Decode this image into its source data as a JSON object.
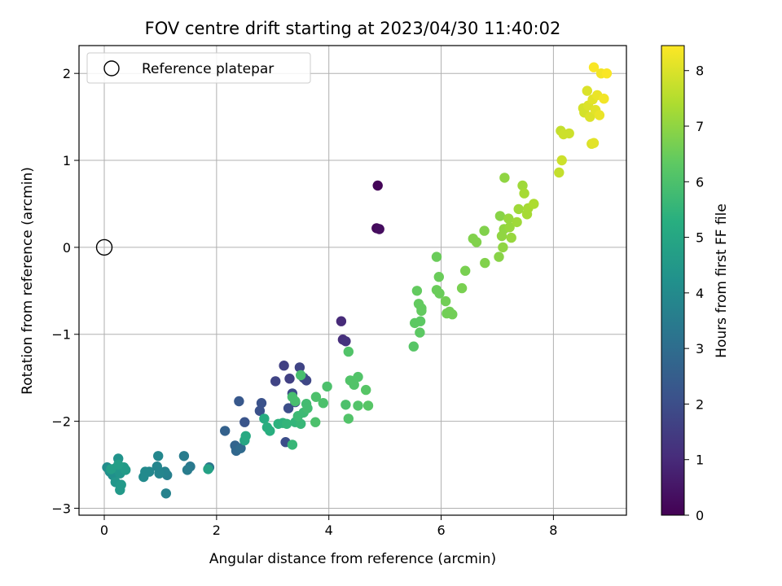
{
  "chart_data": {
    "type": "scatter",
    "title": "FOV centre drift starting at 2023/04/30 11:40:02",
    "xlabel": "Angular distance from reference (arcmin)",
    "ylabel": "Rotation from reference (arcmin)",
    "xlim": [
      -0.45,
      9.3
    ],
    "ylim": [
      -3.08,
      2.32
    ],
    "xticks": [
      0,
      2,
      4,
      6,
      8
    ],
    "yticks": [
      -3,
      -2,
      -1,
      0,
      1,
      2
    ],
    "xtick_labels": [
      "0",
      "2",
      "4",
      "6",
      "8"
    ],
    "ytick_labels": [
      "−3",
      "−2",
      "−1",
      "0",
      "1",
      "2"
    ],
    "grid": true,
    "legend": {
      "placement": "top-left",
      "entries": [
        "Reference platepar"
      ]
    },
    "reference_point": {
      "x": 0,
      "y": 0
    },
    "colorbar": {
      "label": "Hours from first FF file",
      "range": [
        0,
        8.45
      ],
      "ticks": [
        0,
        1,
        2,
        3,
        4,
        5,
        6,
        7,
        8
      ],
      "tick_labels": [
        "0",
        "1",
        "2",
        "3",
        "4",
        "5",
        "6",
        "7",
        "8"
      ],
      "colormap": "viridis"
    },
    "points": [
      [
        4.87,
        0.71,
        0.1
      ],
      [
        4.85,
        0.22,
        0.2
      ],
      [
        4.9,
        0.21,
        0.3
      ],
      [
        4.22,
        -0.85,
        1.0
      ],
      [
        4.25,
        -1.06,
        1.1
      ],
      [
        4.3,
        -1.08,
        1.2
      ],
      [
        3.2,
        -1.36,
        1.6
      ],
      [
        3.3,
        -1.51,
        1.6
      ],
      [
        3.48,
        -1.38,
        1.7
      ],
      [
        3.05,
        -1.54,
        1.7
      ],
      [
        3.55,
        -1.5,
        1.8
      ],
      [
        3.6,
        -1.53,
        1.8
      ],
      [
        3.35,
        -1.68,
        1.9
      ],
      [
        3.4,
        -1.78,
        1.9
      ],
      [
        3.28,
        -1.85,
        2.0
      ],
      [
        3.23,
        -2.24,
        2.0
      ],
      [
        2.8,
        -1.79,
        2.1
      ],
      [
        2.77,
        -1.88,
        2.1
      ],
      [
        2.5,
        -2.01,
        2.2
      ],
      [
        2.4,
        -1.77,
        2.3
      ],
      [
        2.15,
        -2.11,
        2.6
      ],
      [
        2.33,
        -2.28,
        2.7
      ],
      [
        2.35,
        -2.34,
        2.8
      ],
      [
        2.43,
        -2.31,
        2.9
      ],
      [
        1.87,
        -2.53,
        3.3
      ],
      [
        1.53,
        -2.52,
        3.4
      ],
      [
        1.48,
        -2.56,
        3.5
      ],
      [
        1.42,
        -2.4,
        3.5
      ],
      [
        1.12,
        -2.62,
        3.6
      ],
      [
        1.08,
        -2.58,
        3.7
      ],
      [
        1.1,
        -2.83,
        3.7
      ],
      [
        0.98,
        -2.6,
        3.8
      ],
      [
        0.94,
        -2.52,
        3.8
      ],
      [
        0.96,
        -2.4,
        3.9
      ],
      [
        0.8,
        -2.58,
        3.9
      ],
      [
        0.73,
        -2.58,
        4.0
      ],
      [
        0.7,
        -2.64,
        4.0
      ],
      [
        0.05,
        -2.53,
        4.1
      ],
      [
        0.1,
        -2.58,
        4.2
      ],
      [
        0.15,
        -2.62,
        4.2
      ],
      [
        0.2,
        -2.54,
        4.3
      ],
      [
        0.25,
        -2.43,
        4.3
      ],
      [
        0.28,
        -2.6,
        4.4
      ],
      [
        0.2,
        -2.7,
        4.4
      ],
      [
        0.3,
        -2.73,
        4.5
      ],
      [
        0.28,
        -2.79,
        4.5
      ],
      [
        0.35,
        -2.53,
        4.6
      ],
      [
        0.38,
        -2.56,
        4.6
      ],
      [
        0.25,
        -2.5,
        4.7
      ],
      [
        0.12,
        -2.55,
        4.7
      ],
      [
        1.85,
        -2.55,
        4.8
      ],
      [
        2.5,
        -2.22,
        5.0
      ],
      [
        2.52,
        -2.17,
        5.1
      ],
      [
        2.85,
        -1.97,
        5.2
      ],
      [
        2.9,
        -2.07,
        5.3
      ],
      [
        2.95,
        -2.11,
        5.3
      ],
      [
        3.1,
        -2.03,
        5.4
      ],
      [
        3.18,
        -2.02,
        5.4
      ],
      [
        3.25,
        -2.03,
        5.5
      ],
      [
        3.4,
        -2.01,
        5.5
      ],
      [
        3.35,
        -2.27,
        5.6
      ],
      [
        3.5,
        -2.03,
        5.6
      ],
      [
        3.45,
        -1.94,
        5.7
      ],
      [
        3.55,
        -1.9,
        5.7
      ],
      [
        3.6,
        -1.8,
        5.8
      ],
      [
        3.62,
        -1.85,
        5.8
      ],
      [
        3.4,
        -1.77,
        5.9
      ],
      [
        3.35,
        -1.72,
        5.9
      ],
      [
        3.5,
        -1.47,
        5.9
      ],
      [
        3.77,
        -1.72,
        6.0
      ],
      [
        3.76,
        -2.01,
        6.0
      ],
      [
        3.9,
        -1.79,
        6.0
      ],
      [
        3.97,
        -1.6,
        6.0
      ],
      [
        4.3,
        -1.81,
        6.0
      ],
      [
        4.35,
        -1.97,
        6.1
      ],
      [
        4.35,
        -1.2,
        6.1
      ],
      [
        4.38,
        -1.53,
        6.1
      ],
      [
        4.45,
        -1.58,
        6.1
      ],
      [
        4.52,
        -1.49,
        6.1
      ],
      [
        4.52,
        -1.82,
        6.1
      ],
      [
        4.66,
        -1.64,
        6.2
      ],
      [
        4.7,
        -1.82,
        6.2
      ],
      [
        5.51,
        -1.14,
        6.2
      ],
      [
        5.53,
        -0.87,
        6.3
      ],
      [
        5.62,
        -0.98,
        6.3
      ],
      [
        5.63,
        -0.85,
        6.3
      ],
      [
        5.57,
        -0.5,
        6.4
      ],
      [
        5.6,
        -0.65,
        6.4
      ],
      [
        5.65,
        -0.7,
        6.4
      ],
      [
        5.65,
        -0.73,
        6.4
      ],
      [
        5.92,
        -0.11,
        6.5
      ],
      [
        5.92,
        -0.49,
        6.5
      ],
      [
        5.97,
        -0.53,
        6.5
      ],
      [
        5.96,
        -0.34,
        6.5
      ],
      [
        6.1,
        -0.76,
        6.6
      ],
      [
        6.15,
        -0.74,
        6.6
      ],
      [
        6.2,
        -0.77,
        6.6
      ],
      [
        6.08,
        -0.62,
        6.6
      ],
      [
        6.37,
        -0.47,
        6.7
      ],
      [
        6.43,
        -0.27,
        6.7
      ],
      [
        6.57,
        0.1,
        6.8
      ],
      [
        6.63,
        0.06,
        6.8
      ],
      [
        6.77,
        0.19,
        6.8
      ],
      [
        6.78,
        -0.18,
        6.8
      ],
      [
        7.03,
        -0.11,
        6.9
      ],
      [
        7.05,
        0.36,
        6.9
      ],
      [
        7.08,
        0.13,
        7.0
      ],
      [
        7.1,
        0.0,
        7.0
      ],
      [
        7.12,
        0.21,
        7.0
      ],
      [
        7.13,
        0.8,
        7.0
      ],
      [
        7.2,
        0.33,
        7.1
      ],
      [
        7.22,
        0.23,
        7.1
      ],
      [
        7.25,
        0.11,
        7.1
      ],
      [
        7.35,
        0.29,
        7.2
      ],
      [
        7.38,
        0.44,
        7.2
      ],
      [
        7.45,
        0.71,
        7.2
      ],
      [
        7.48,
        0.62,
        7.3
      ],
      [
        7.53,
        0.38,
        7.3
      ],
      [
        7.55,
        0.45,
        7.3
      ],
      [
        7.65,
        0.5,
        7.4
      ],
      [
        8.1,
        0.86,
        7.7
      ],
      [
        8.13,
        1.34,
        7.7
      ],
      [
        8.15,
        1.0,
        7.8
      ],
      [
        8.18,
        1.3,
        7.8
      ],
      [
        8.28,
        1.31,
        7.8
      ],
      [
        8.53,
        1.6,
        7.9
      ],
      [
        8.55,
        1.55,
        7.9
      ],
      [
        8.6,
        1.8,
        8.0
      ],
      [
        8.62,
        1.63,
        8.0
      ],
      [
        8.65,
        1.5,
        8.0
      ],
      [
        8.68,
        1.19,
        8.0
      ],
      [
        8.72,
        1.2,
        8.1
      ],
      [
        8.75,
        1.58,
        8.1
      ],
      [
        8.7,
        1.7,
        8.1
      ],
      [
        8.78,
        1.75,
        8.2
      ],
      [
        8.82,
        1.52,
        8.2
      ],
      [
        8.85,
        2.0,
        8.3
      ],
      [
        8.9,
        1.71,
        8.3
      ],
      [
        8.72,
        2.07,
        8.4
      ],
      [
        8.95,
        2.0,
        8.4
      ]
    ]
  }
}
